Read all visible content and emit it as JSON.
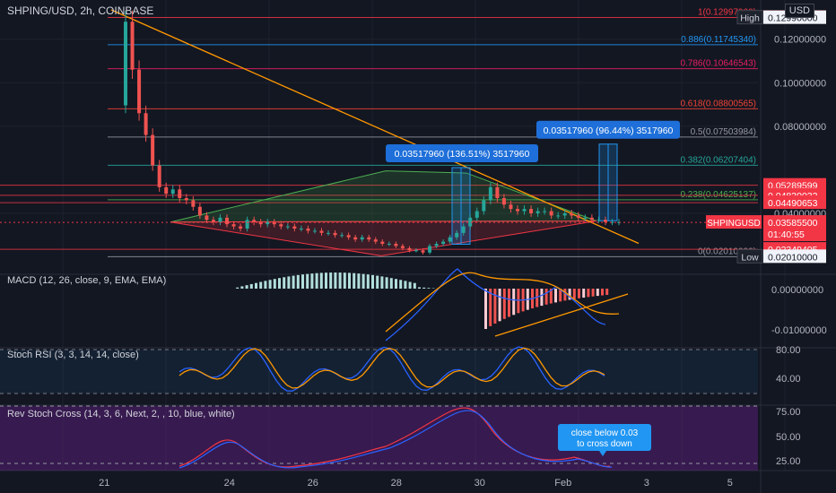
{
  "header": {
    "symbol_title": "SHPING/USD, 2h, COINBASE",
    "currency": "USD"
  },
  "main_price_axis": [
    {
      "label": "0.12000000",
      "value": 0.12
    },
    {
      "label": "0.10000000",
      "value": 0.1
    },
    {
      "label": "0.08000000",
      "value": 0.08
    },
    {
      "label": "0.04000000",
      "value": 0.04
    }
  ],
  "price_tags": [
    {
      "label": "0.12995944",
      "value": 0.12995944,
      "color": "#f23645"
    },
    {
      "label": "0.12990000",
      "value": 0.1299,
      "color": "#f0f3fa",
      "text_color": "#131722",
      "prefix": "High"
    },
    {
      "label": "0.05289599",
      "value": 0.05289599,
      "color": "#f23645"
    },
    {
      "label": "0.04830032",
      "value": 0.04830032,
      "color": "#f23645"
    },
    {
      "label": "0.04490653",
      "value": 0.04490653,
      "color": "#f23645"
    },
    {
      "label": "0.02349405",
      "value": 0.02349405,
      "color": "#f23645"
    },
    {
      "label": "0.02010000",
      "value": 0.0201,
      "color": "#f0f3fa",
      "text_color": "#131722",
      "prefix": "Low"
    }
  ],
  "current_price": {
    "symbol": "SHPINGUSD",
    "price": "0.03585500",
    "countdown": "01:40:55",
    "value": 0.035855,
    "color": "#f23645"
  },
  "fib_levels": [
    {
      "label": "1(0.12997960)",
      "value": 0.1299796,
      "color": "#f23645"
    },
    {
      "label": "0.886(0.11745340)",
      "value": 0.1174534,
      "color": "#2196f3"
    },
    {
      "label": "0.786(0.10646543)",
      "value": 0.10646543,
      "color": "#e91e63"
    },
    {
      "label": "0.618(0.08800565)",
      "value": 0.08800565,
      "color": "#f44336"
    },
    {
      "label": "0.5(0.07503984)",
      "value": 0.07503984,
      "color": "#9598a1"
    },
    {
      "label": "0.382(0.06207404)",
      "value": 0.06207404,
      "color": "#26a69a"
    },
    {
      "label": "0.238(0.04625137)",
      "value": 0.04625137,
      "color": "#4caf50"
    },
    {
      "label": "0(0.02010000)",
      "value": 0.0201,
      "color": "#9598a1"
    }
  ],
  "horizontal_lines": [
    {
      "value": 0.05289599,
      "color": "#f23645"
    },
    {
      "value": 0.04830032,
      "color": "#f23645"
    },
    {
      "value": 0.04490653,
      "color": "#f23645"
    },
    {
      "value": 0.02349405,
      "color": "#f23645"
    }
  ],
  "measure_callouts": [
    {
      "text": "0.03517960 (136.51%) 3517960",
      "from": 0.0258,
      "to": 0.061
    },
    {
      "text": "0.03517960 (96.44%) 3517960",
      "from": 0.0366,
      "to": 0.0718
    }
  ],
  "time_axis": [
    {
      "label": "21",
      "pos": 0.15
    },
    {
      "label": "24",
      "pos": 0.33
    },
    {
      "label": "26",
      "pos": 0.45
    },
    {
      "label": "28",
      "pos": 0.57
    },
    {
      "label": "30",
      "pos": 0.69
    },
    {
      "label": "Feb",
      "pos": 0.81
    },
    {
      "label": "3",
      "pos": 0.93
    },
    {
      "label": "5",
      "pos": 1.05
    }
  ],
  "indicators": {
    "macd": {
      "label": "MACD (12, 26, close, 9, EMA, EMA)",
      "axis": [
        {
          "label": "0.00000000",
          "value": 0.0
        },
        {
          "label": "-0.01000000",
          "value": -0.01
        }
      ]
    },
    "stoch_rsi": {
      "label": "Stoch RSI (3, 3, 14, 14, close)",
      "axis": [
        {
          "label": "80.00",
          "value": 80
        },
        {
          "label": "40.00",
          "value": 40
        }
      ]
    },
    "rev_stoch": {
      "label": "Rev Stoch Cross (14, 3, 6, Next, 2, , 10, blue, white)",
      "axis": [
        {
          "label": "75.00",
          "value": 75
        },
        {
          "label": "50.00",
          "value": 50
        },
        {
          "label": "25.00",
          "value": 25
        }
      ],
      "callout": "close below 0.03\nto cross down"
    }
  },
  "chart_data": {
    "type": "candlestick",
    "title": "SHPING/USD, 2h, COINBASE",
    "ylim": [
      0.012,
      0.138
    ],
    "series": [
      {
        "name": "price",
        "values": [
          0.128,
          0.106,
          0.086,
          0.076,
          0.062,
          0.052,
          0.049,
          0.051,
          0.047,
          0.046,
          0.043,
          0.039,
          0.037,
          0.036,
          0.038,
          0.035,
          0.034,
          0.033,
          0.037,
          0.036,
          0.035,
          0.036,
          0.035,
          0.034,
          0.034,
          0.033,
          0.033,
          0.032,
          0.032,
          0.031,
          0.031,
          0.03,
          0.03,
          0.029,
          0.028,
          0.029,
          0.028,
          0.027,
          0.026,
          0.026,
          0.025,
          0.024,
          0.023,
          0.023,
          0.022,
          0.025,
          0.026,
          0.027,
          0.029,
          0.031,
          0.034,
          0.038,
          0.041,
          0.046,
          0.052,
          0.047,
          0.044,
          0.042,
          0.041,
          0.042,
          0.04,
          0.041,
          0.041,
          0.039,
          0.039,
          0.04,
          0.039,
          0.038,
          0.038,
          0.037,
          0.037,
          0.036,
          0.036,
          0.036
        ]
      }
    ]
  }
}
